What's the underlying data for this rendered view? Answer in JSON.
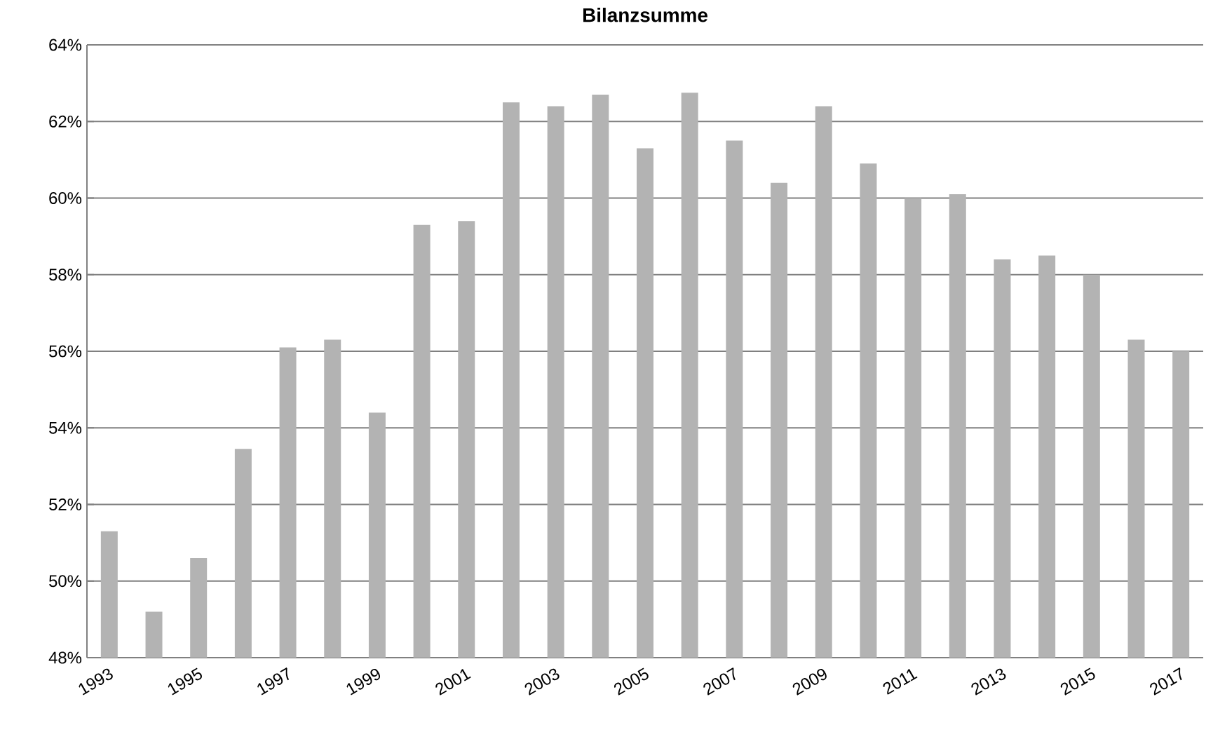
{
  "chart_data": {
    "type": "bar",
    "title": "Bilanzsumme",
    "categories": [
      "1993",
      null,
      "1995",
      null,
      "1997",
      null,
      "1999",
      null,
      "2001",
      null,
      "2003",
      null,
      "2005",
      null,
      "2007",
      null,
      "2009",
      null,
      "2011",
      null,
      "2013",
      null,
      "2015",
      null,
      "2017"
    ],
    "values": [
      51.3,
      49.2,
      50.6,
      53.45,
      56.1,
      56.3,
      54.4,
      59.3,
      59.4,
      62.5,
      62.4,
      62.7,
      61.3,
      62.75,
      61.5,
      60.4,
      62.4,
      60.9,
      60.0,
      60.1,
      58.4,
      58.5,
      58.0,
      56.3,
      56.0
    ],
    "color": "#b3b3b3",
    "ylim": [
      48,
      64
    ],
    "yticks": [
      {
        "value": 48,
        "label": "48%"
      },
      {
        "value": 50,
        "label": "50%"
      },
      {
        "value": 52,
        "label": "52%"
      },
      {
        "value": 54,
        "label": "54%"
      },
      {
        "value": 56,
        "label": "56%"
      },
      {
        "value": 58,
        "label": "58%"
      },
      {
        "value": 60,
        "label": "60%"
      },
      {
        "value": 62,
        "label": "62%"
      },
      {
        "value": 64,
        "label": "64%"
      }
    ],
    "grid": "y"
  }
}
